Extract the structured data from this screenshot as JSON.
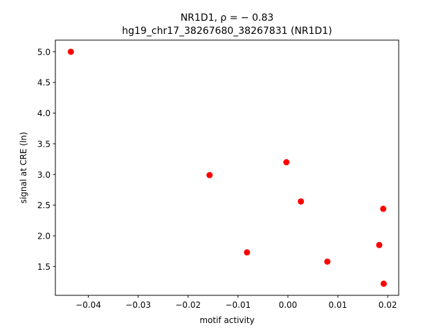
{
  "chart_data": {
    "type": "scatter",
    "title": "NR1D1, ρ = − 0.83",
    "subtitle": "hg19_chr17_38267680_38267831 (NR1D1)",
    "xlabel": "motif activity",
    "ylabel": "signal at CRE (ln)",
    "xlim": [
      -0.0466,
      0.0222
    ],
    "ylim": [
      1.03,
      5.19
    ],
    "xticks": [
      -0.04,
      -0.03,
      -0.02,
      -0.01,
      0.0,
      0.01,
      0.02
    ],
    "xtick_labels": [
      "−0.04",
      "−0.03",
      "−0.02",
      "−0.01",
      "0.00",
      "0.01",
      "0.02"
    ],
    "yticks": [
      1.5,
      2.0,
      2.5,
      3.0,
      3.5,
      4.0,
      4.5,
      5.0
    ],
    "ytick_labels": [
      "1.5",
      "2.0",
      "2.5",
      "3.0",
      "3.5",
      "4.0",
      "4.5",
      "5.0"
    ],
    "grid": false,
    "legend": "none",
    "series": [
      {
        "color": "#ff0000",
        "points": [
          {
            "x": -0.0435,
            "y": 5.0
          },
          {
            "x": -0.0157,
            "y": 2.99
          },
          {
            "x": -0.0082,
            "y": 1.73
          },
          {
            "x": -0.0003,
            "y": 3.2
          },
          {
            "x": 0.0026,
            "y": 2.56
          },
          {
            "x": 0.0079,
            "y": 1.58
          },
          {
            "x": 0.0183,
            "y": 1.85
          },
          {
            "x": 0.0191,
            "y": 2.44
          },
          {
            "x": 0.0192,
            "y": 1.22
          }
        ]
      }
    ]
  }
}
